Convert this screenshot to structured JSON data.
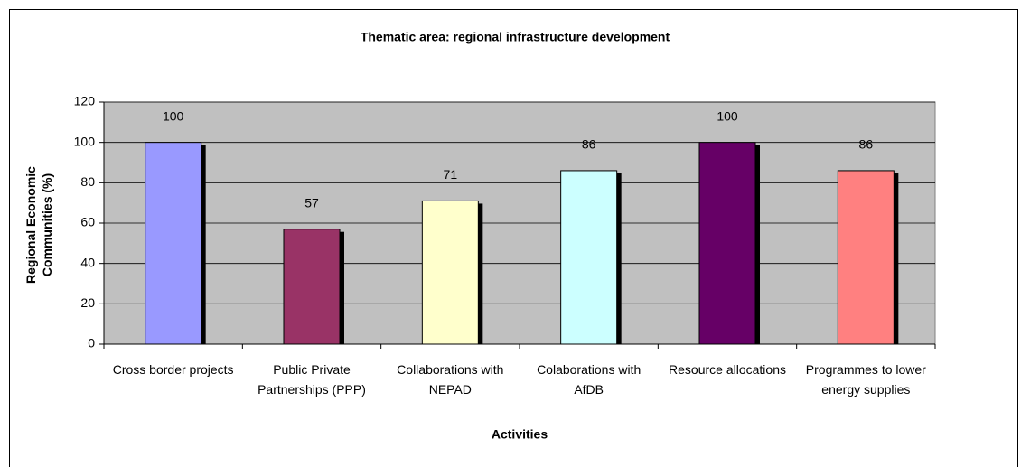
{
  "chart_data": {
    "type": "bar",
    "title": "Thematic area: regional infrastructure development",
    "x_label": "Activities",
    "y_label": "Regional Economic Communities (%)",
    "categories": [
      "Cross border projects",
      "Public Private Partnerships (PPP)",
      "Collaborations with NEPAD",
      "Colaborations with AfDB",
      "Resource allocations",
      "Programmes to lower energy supplies"
    ],
    "values": [
      100,
      57,
      71,
      86,
      100,
      86
    ],
    "colors": [
      "#9999ff",
      "#993366",
      "#ffffcc",
      "#ccffff",
      "#660066",
      "#ff8080"
    ],
    "ylim": [
      0,
      120
    ],
    "yticks": [
      0,
      20,
      40,
      60,
      80,
      100,
      120
    ],
    "grid": true
  }
}
